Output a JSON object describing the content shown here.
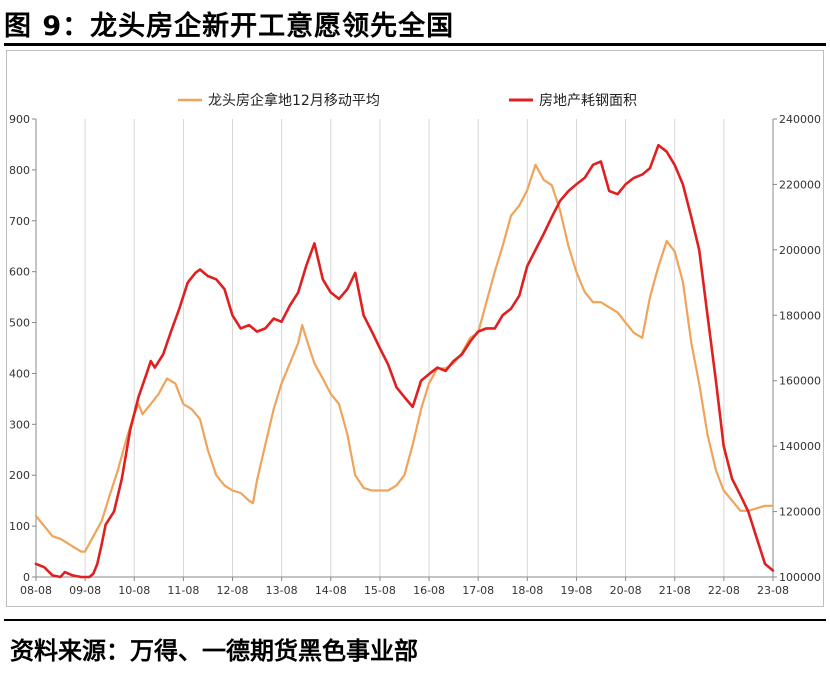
{
  "figure_title": "图 9：龙头房企新开工意愿领先全国",
  "source": "资料来源：万得、一德期货黑色事业部",
  "colors": {
    "orange": "#F0A35A",
    "red": "#E02020",
    "grid": "#d6d6d6",
    "axis": "#888888",
    "text": "#333333"
  },
  "chart_data": {
    "type": "line",
    "x_range": [
      2008.583,
      2023.583
    ],
    "x_tick_labels": [
      "08-08",
      "09-08",
      "10-08",
      "11-08",
      "12-08",
      "13-08",
      "14-08",
      "15-08",
      "16-08",
      "17-08",
      "18-08",
      "19-08",
      "20-08",
      "21-08",
      "22-08",
      "23-08"
    ],
    "y_left": {
      "min": 0,
      "max": 900,
      "ticks": [
        0,
        100,
        200,
        300,
        400,
        500,
        600,
        700,
        800,
        900
      ]
    },
    "y_right": {
      "min": 100000,
      "max": 240000,
      "ticks": [
        100000,
        120000,
        140000,
        160000,
        180000,
        200000,
        220000,
        240000
      ]
    },
    "grid": "vertical",
    "legend_position": "top",
    "series": [
      {
        "name": "龙头房企拿地12月移动平均",
        "axis": "left",
        "color": "#F0A35A",
        "points": [
          [
            2008.58,
            120
          ],
          [
            2008.75,
            100
          ],
          [
            2008.92,
            80
          ],
          [
            2009.08,
            75
          ],
          [
            2009.17,
            70
          ],
          [
            2009.33,
            60
          ],
          [
            2009.5,
            50
          ],
          [
            2009.58,
            50
          ],
          [
            2009.75,
            80
          ],
          [
            2009.92,
            110
          ],
          [
            2010.08,
            160
          ],
          [
            2010.25,
            210
          ],
          [
            2010.42,
            270
          ],
          [
            2010.58,
            320
          ],
          [
            2010.67,
            340
          ],
          [
            2010.75,
            320
          ],
          [
            2010.92,
            340
          ],
          [
            2011.08,
            360
          ],
          [
            2011.25,
            390
          ],
          [
            2011.42,
            380
          ],
          [
            2011.58,
            340
          ],
          [
            2011.75,
            330
          ],
          [
            2011.92,
            310
          ],
          [
            2012.08,
            250
          ],
          [
            2012.25,
            200
          ],
          [
            2012.42,
            180
          ],
          [
            2012.58,
            170
          ],
          [
            2012.75,
            165
          ],
          [
            2012.92,
            150
          ],
          [
            2013.0,
            145
          ],
          [
            2013.08,
            190
          ],
          [
            2013.25,
            260
          ],
          [
            2013.42,
            330
          ],
          [
            2013.58,
            380
          ],
          [
            2013.75,
            420
          ],
          [
            2013.92,
            460
          ],
          [
            2014.0,
            495
          ],
          [
            2014.08,
            470
          ],
          [
            2014.25,
            420
          ],
          [
            2014.42,
            390
          ],
          [
            2014.58,
            360
          ],
          [
            2014.75,
            340
          ],
          [
            2014.92,
            280
          ],
          [
            2015.08,
            200
          ],
          [
            2015.25,
            175
          ],
          [
            2015.42,
            170
          ],
          [
            2015.58,
            170
          ],
          [
            2015.75,
            170
          ],
          [
            2015.92,
            180
          ],
          [
            2016.08,
            200
          ],
          [
            2016.25,
            260
          ],
          [
            2016.42,
            330
          ],
          [
            2016.58,
            380
          ],
          [
            2016.75,
            410
          ],
          [
            2016.92,
            410
          ],
          [
            2017.08,
            420
          ],
          [
            2017.25,
            440
          ],
          [
            2017.42,
            470
          ],
          [
            2017.58,
            480
          ],
          [
            2017.75,
            540
          ],
          [
            2017.92,
            600
          ],
          [
            2018.08,
            650
          ],
          [
            2018.25,
            710
          ],
          [
            2018.42,
            730
          ],
          [
            2018.58,
            760
          ],
          [
            2018.75,
            810
          ],
          [
            2018.92,
            780
          ],
          [
            2019.08,
            770
          ],
          [
            2019.25,
            720
          ],
          [
            2019.42,
            650
          ],
          [
            2019.58,
            600
          ],
          [
            2019.75,
            560
          ],
          [
            2019.92,
            540
          ],
          [
            2020.08,
            540
          ],
          [
            2020.25,
            530
          ],
          [
            2020.42,
            520
          ],
          [
            2020.58,
            500
          ],
          [
            2020.75,
            480
          ],
          [
            2020.92,
            470
          ],
          [
            2021.08,
            550
          ],
          [
            2021.25,
            610
          ],
          [
            2021.42,
            660
          ],
          [
            2021.58,
            640
          ],
          [
            2021.75,
            580
          ],
          [
            2021.92,
            460
          ],
          [
            2022.08,
            380
          ],
          [
            2022.25,
            280
          ],
          [
            2022.42,
            210
          ],
          [
            2022.58,
            170
          ],
          [
            2022.75,
            150
          ],
          [
            2022.92,
            130
          ],
          [
            2023.08,
            130
          ],
          [
            2023.25,
            135
          ],
          [
            2023.42,
            140
          ],
          [
            2023.58,
            140
          ]
        ]
      },
      {
        "name": "房地产耗钢面积",
        "axis": "right",
        "color": "#E02020",
        "points": [
          [
            2008.58,
            104000
          ],
          [
            2008.75,
            103000
          ],
          [
            2008.92,
            100500
          ],
          [
            2009.08,
            100000
          ],
          [
            2009.17,
            101500
          ],
          [
            2009.33,
            100500
          ],
          [
            2009.5,
            100000
          ],
          [
            2009.67,
            100000
          ],
          [
            2009.75,
            101000
          ],
          [
            2009.83,
            104000
          ],
          [
            2009.92,
            110000
          ],
          [
            2010.0,
            116000
          ],
          [
            2010.17,
            120000
          ],
          [
            2010.33,
            130000
          ],
          [
            2010.5,
            145000
          ],
          [
            2010.67,
            155000
          ],
          [
            2010.83,
            162000
          ],
          [
            2010.92,
            166000
          ],
          [
            2011.0,
            164000
          ],
          [
            2011.17,
            168000
          ],
          [
            2011.33,
            175000
          ],
          [
            2011.5,
            182000
          ],
          [
            2011.67,
            190000
          ],
          [
            2011.83,
            193000
          ],
          [
            2011.92,
            194000
          ],
          [
            2012.08,
            192000
          ],
          [
            2012.25,
            191000
          ],
          [
            2012.42,
            188000
          ],
          [
            2012.58,
            180000
          ],
          [
            2012.75,
            176000
          ],
          [
            2012.92,
            177000
          ],
          [
            2013.08,
            175000
          ],
          [
            2013.25,
            176000
          ],
          [
            2013.42,
            179000
          ],
          [
            2013.58,
            178000
          ],
          [
            2013.75,
            183000
          ],
          [
            2013.92,
            187000
          ],
          [
            2014.08,
            195000
          ],
          [
            2014.25,
            202000
          ],
          [
            2014.42,
            191000
          ],
          [
            2014.58,
            187000
          ],
          [
            2014.75,
            185000
          ],
          [
            2014.92,
            188000
          ],
          [
            2015.08,
            193000
          ],
          [
            2015.25,
            180000
          ],
          [
            2015.42,
            175000
          ],
          [
            2015.58,
            170000
          ],
          [
            2015.75,
            165000
          ],
          [
            2015.92,
            158000
          ],
          [
            2016.08,
            155000
          ],
          [
            2016.25,
            152000
          ],
          [
            2016.42,
            160000
          ],
          [
            2016.58,
            162000
          ],
          [
            2016.75,
            164000
          ],
          [
            2016.92,
            163000
          ],
          [
            2017.08,
            166000
          ],
          [
            2017.25,
            168000
          ],
          [
            2017.42,
            172000
          ],
          [
            2017.58,
            175000
          ],
          [
            2017.75,
            176000
          ],
          [
            2017.92,
            176000
          ],
          [
            2018.08,
            180000
          ],
          [
            2018.25,
            182000
          ],
          [
            2018.42,
            186000
          ],
          [
            2018.58,
            195000
          ],
          [
            2018.75,
            200000
          ],
          [
            2018.92,
            205000
          ],
          [
            2019.08,
            210000
          ],
          [
            2019.25,
            215000
          ],
          [
            2019.42,
            218000
          ],
          [
            2019.58,
            220000
          ],
          [
            2019.75,
            222000
          ],
          [
            2019.92,
            226000
          ],
          [
            2020.08,
            227000
          ],
          [
            2020.25,
            218000
          ],
          [
            2020.42,
            217000
          ],
          [
            2020.58,
            220000
          ],
          [
            2020.75,
            222000
          ],
          [
            2020.92,
            223000
          ],
          [
            2021.08,
            225000
          ],
          [
            2021.25,
            232000
          ],
          [
            2021.42,
            230000
          ],
          [
            2021.58,
            226000
          ],
          [
            2021.75,
            220000
          ],
          [
            2021.92,
            210000
          ],
          [
            2022.08,
            200000
          ],
          [
            2022.25,
            180000
          ],
          [
            2022.42,
            160000
          ],
          [
            2022.58,
            140000
          ],
          [
            2022.75,
            130000
          ],
          [
            2022.92,
            125000
          ],
          [
            2023.08,
            120000
          ],
          [
            2023.25,
            112000
          ],
          [
            2023.42,
            104000
          ],
          [
            2023.58,
            102000
          ]
        ]
      }
    ]
  }
}
